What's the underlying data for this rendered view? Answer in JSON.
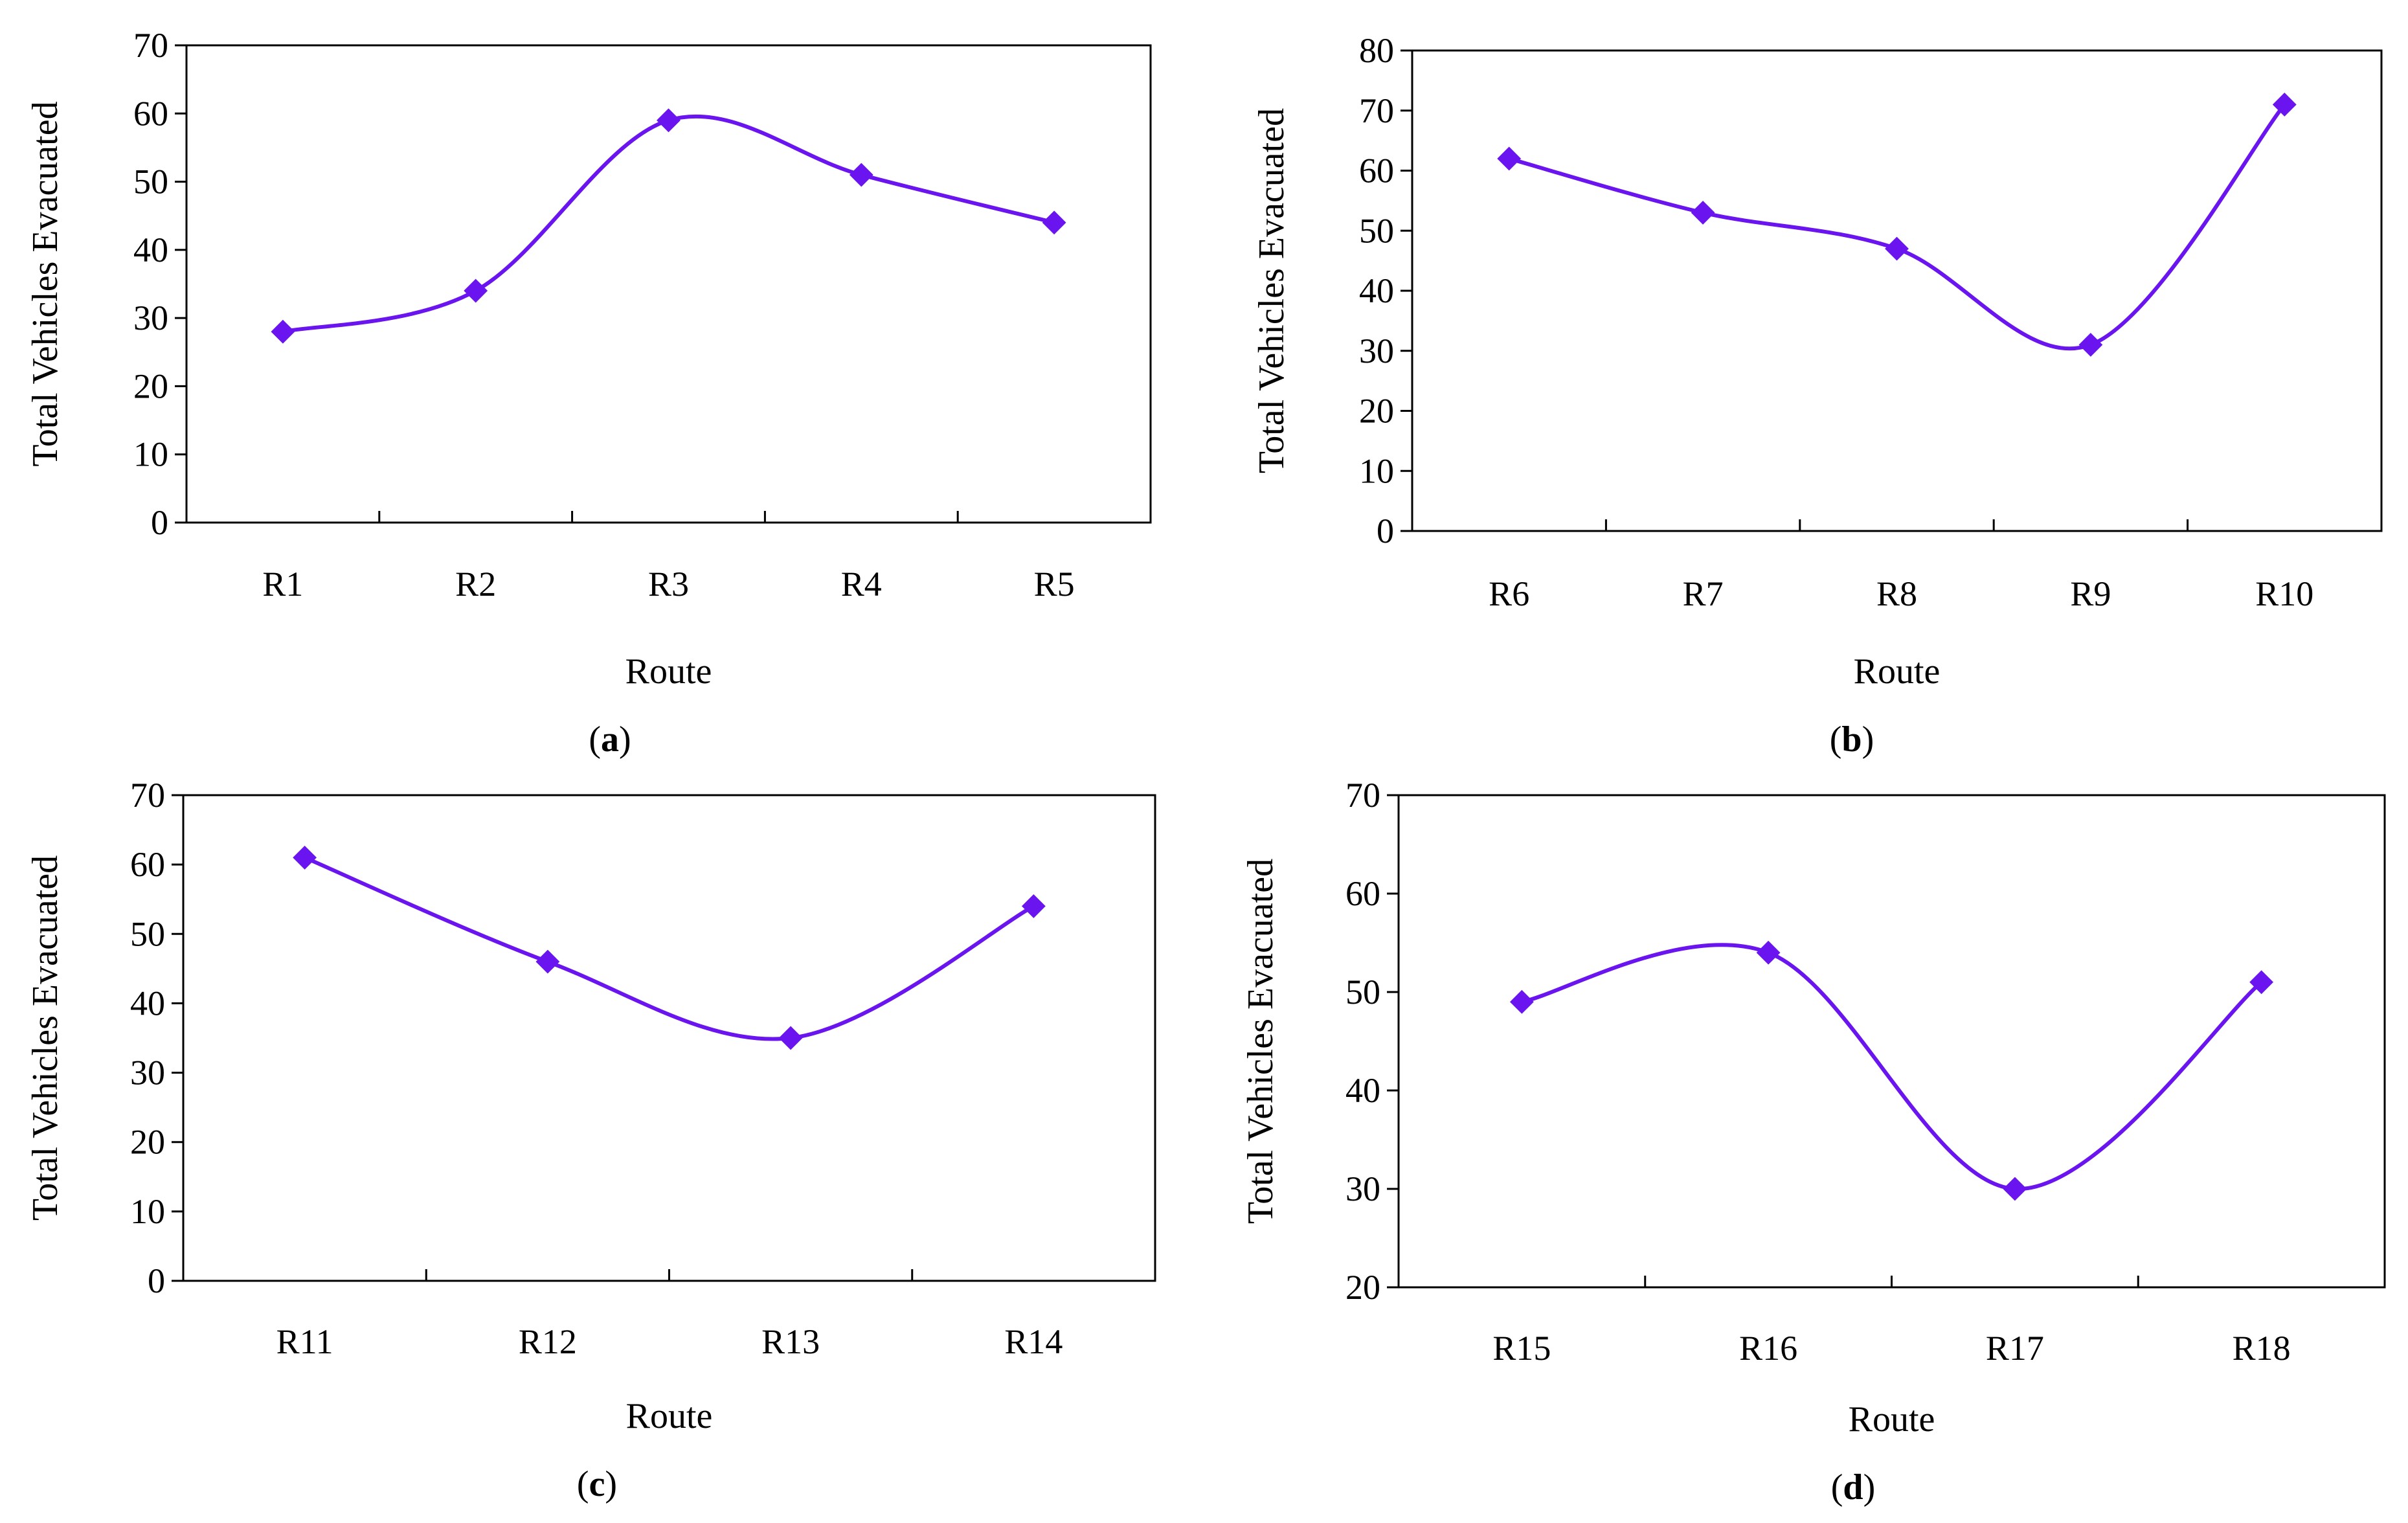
{
  "figure": {
    "line_color": "#6a14f0",
    "marker": "diamond"
  },
  "chart_data": [
    {
      "type": "line",
      "panel": "a",
      "xlabel": "Route",
      "ylabel": "Total Vehicles Evacuated",
      "categories": [
        "R1",
        "R2",
        "R3",
        "R4",
        "R5"
      ],
      "values": [
        28,
        34,
        59,
        51,
        44
      ],
      "ylim": [
        0,
        70
      ],
      "yticks": [
        0,
        10,
        20,
        30,
        40,
        50,
        60,
        70
      ],
      "smooth": true,
      "grid": false,
      "legend": "none"
    },
    {
      "type": "line",
      "panel": "b",
      "xlabel": "Route",
      "ylabel": "Total Vehicles Evacuated",
      "categories": [
        "R6",
        "R7",
        "R8",
        "R9",
        "R10"
      ],
      "values": [
        62,
        53,
        47,
        31,
        71
      ],
      "ylim": [
        0,
        80
      ],
      "yticks": [
        0,
        10,
        20,
        30,
        40,
        50,
        60,
        70,
        80
      ],
      "smooth": true,
      "grid": false,
      "legend": "none"
    },
    {
      "type": "line",
      "panel": "c",
      "xlabel": "Route",
      "ylabel": "Total Vehicles Evacuated",
      "categories": [
        "R11",
        "R12",
        "R13",
        "R14"
      ],
      "values": [
        61,
        46,
        35,
        54
      ],
      "ylim": [
        0,
        70
      ],
      "yticks": [
        0,
        10,
        20,
        30,
        40,
        50,
        60,
        70
      ],
      "smooth": true,
      "grid": false,
      "legend": "none"
    },
    {
      "type": "line",
      "panel": "d",
      "xlabel": "Route",
      "ylabel": "Total Vehicles Evacuated",
      "categories": [
        "R15",
        "R16",
        "R17",
        "R18"
      ],
      "values": [
        49,
        54,
        30,
        51
      ],
      "ylim": [
        20,
        70
      ],
      "yticks": [
        20,
        30,
        40,
        50,
        60,
        70
      ],
      "smooth": true,
      "grid": false,
      "legend": "none"
    }
  ]
}
